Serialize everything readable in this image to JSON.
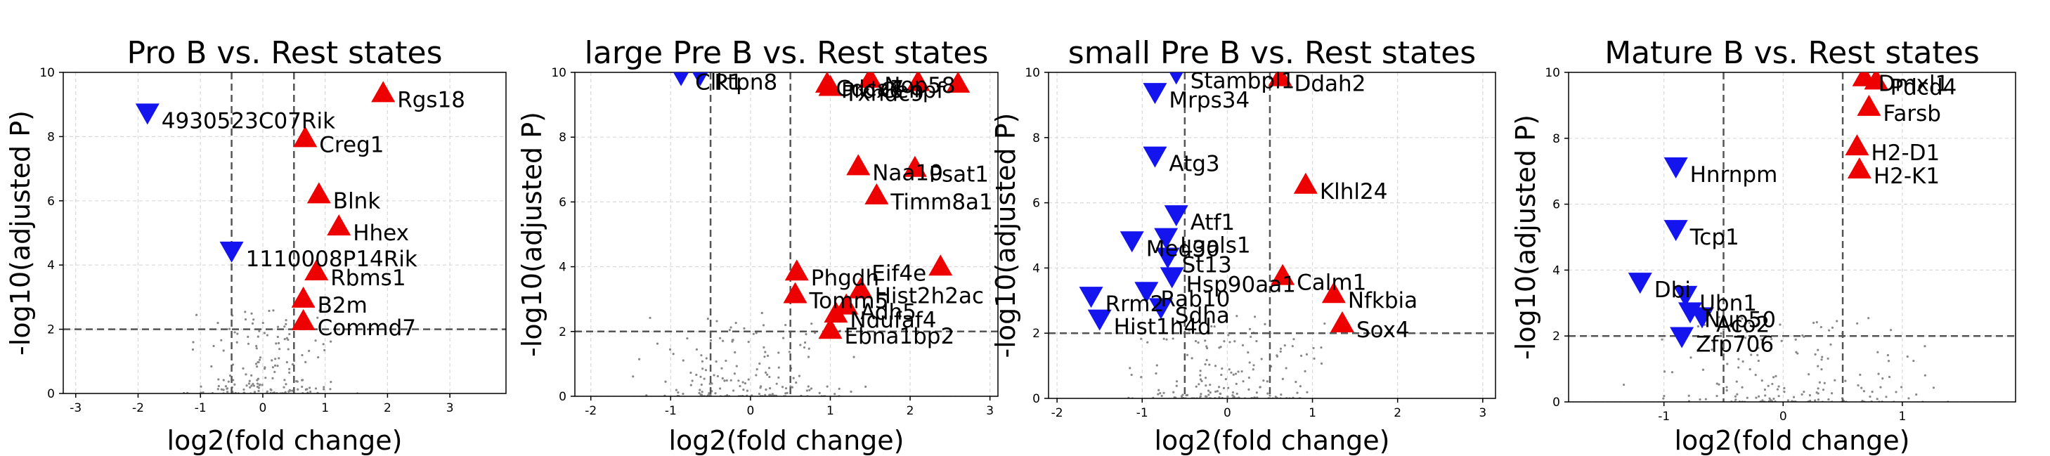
{
  "colors": {
    "up": "#ee0000",
    "down": "#1414ee",
    "background_points": "#888888",
    "threshold": "#555555",
    "grid": "#d9d9d9"
  },
  "chart_data": [
    {
      "type": "scatter",
      "title": "Pro B vs. Rest states",
      "xlabel": "log2(fold change)",
      "ylabel": "-log10(adjusted P)",
      "xlim": [
        -3.2,
        3.9
      ],
      "ylim": [
        0,
        10
      ],
      "xticks": [
        -3,
        -2,
        -1,
        0,
        1,
        2,
        3
      ],
      "yticks": [
        0,
        2,
        4,
        6,
        8,
        10
      ],
      "threshold_x": [
        -0.5,
        0.5
      ],
      "threshold_y": 2,
      "up": [
        {
          "label": "Rgs18",
          "x": 1.93,
          "y": 9.4
        },
        {
          "label": "Creg1",
          "x": 0.68,
          "y": 8.0
        },
        {
          "label": "Blnk",
          "x": 0.9,
          "y": 6.25
        },
        {
          "label": "Hhex",
          "x": 1.22,
          "y": 5.25
        },
        {
          "label": "Rbms1",
          "x": 0.86,
          "y": 3.85
        },
        {
          "label": "B2m",
          "x": 0.65,
          "y": 3.0
        },
        {
          "label": "Commd7",
          "x": 0.65,
          "y": 2.3
        }
      ],
      "down": [
        {
          "label": "4930523C07Rik",
          "x": -1.85,
          "y": 8.7
        },
        {
          "label": "1110008P14Rik",
          "x": -0.5,
          "y": 4.4
        }
      ]
    },
    {
      "type": "scatter",
      "title": "large Pre B vs. Rest states",
      "xlabel": "log2(fold change)",
      "ylabel": "-log10(adjusted P)",
      "xlim": [
        -2.2,
        3.1
      ],
      "ylim": [
        0,
        10
      ],
      "xticks": [
        -2,
        -1,
        0,
        1,
        2,
        3
      ],
      "yticks": [
        0,
        2,
        4,
        6,
        8,
        10
      ],
      "threshold_x": [
        -0.5,
        0.5
      ],
      "threshold_y": 2,
      "up": [
        {
          "label": "Prdx6",
          "x": 0.96,
          "y": 9.7
        },
        {
          "label": "Txndc9",
          "x": 1.0,
          "y": 9.6
        },
        {
          "label": "Nop58",
          "x": 1.5,
          "y": 9.85
        },
        {
          "label": "Cdca7",
          "x": 2.1,
          "y": 9.75
        },
        {
          "label": "Cenpf",
          "x": 2.6,
          "y": 9.7
        },
        {
          "label": "Naa10",
          "x": 1.35,
          "y": 7.15
        },
        {
          "label": "Psat1",
          "x": 2.06,
          "y": 7.1
        },
        {
          "label": "Timm8a1",
          "x": 1.58,
          "y": 6.25
        },
        {
          "label": "Phgdh",
          "x": 0.58,
          "y": 3.9
        },
        {
          "label": "Eif4e",
          "x": 2.38,
          "y": 4.05
        },
        {
          "label": "Hist2h2ac",
          "x": 1.38,
          "y": 3.35
        },
        {
          "label": "Tomm5",
          "x": 0.56,
          "y": 3.2
        },
        {
          "label": "Adh5",
          "x": 1.2,
          "y": 2.85
        },
        {
          "label": "Ndufaf4",
          "x": 1.07,
          "y": 2.6
        },
        {
          "label": "Ebna1bp2",
          "x": 1.0,
          "y": 2.1
        }
      ],
      "down": [
        {
          "label": "Clk1",
          "x": -0.87,
          "y": 9.9
        },
        {
          "label": "Ptpn8",
          "x": -0.63,
          "y": 9.9
        }
      ]
    },
    {
      "type": "scatter",
      "title": "small Pre B vs. Rest states",
      "xlabel": "log2(fold change)",
      "ylabel": "-log10(adjusted P)",
      "xlim": [
        -2.1,
        3.15
      ],
      "ylim": [
        0,
        10
      ],
      "xticks": [
        -2,
        -1,
        0,
        1,
        2,
        3
      ],
      "yticks": [
        0,
        2,
        4,
        6,
        8,
        10
      ],
      "threshold_x": [
        -0.5,
        0.5
      ],
      "threshold_y": 2,
      "up": [
        {
          "label": "Ddah2",
          "x": 0.62,
          "y": 9.9
        },
        {
          "label": "Klhl24",
          "x": 0.92,
          "y": 6.6
        },
        {
          "label": "Calm1",
          "x": 0.65,
          "y": 3.8
        },
        {
          "label": "Nfkbia",
          "x": 1.25,
          "y": 3.25
        },
        {
          "label": "Sox4",
          "x": 1.35,
          "y": 2.35
        }
      ],
      "down": [
        {
          "label": "Mrps34",
          "x": -0.85,
          "y": 9.35
        },
        {
          "label": "Stambpl1",
          "x": -0.6,
          "y": 9.95
        },
        {
          "label": "Atg3",
          "x": -0.85,
          "y": 7.4
        },
        {
          "label": "Atf1",
          "x": -0.6,
          "y": 5.6
        },
        {
          "label": "Lgals1",
          "x": -0.72,
          "y": 4.9
        },
        {
          "label": "St13",
          "x": -0.7,
          "y": 4.3
        },
        {
          "label": "Med30",
          "x": -1.12,
          "y": 4.8
        },
        {
          "label": "Hsp90aa1",
          "x": -0.65,
          "y": 3.7
        },
        {
          "label": "Rrm2",
          "x": -1.6,
          "y": 3.1
        },
        {
          "label": "Rab10",
          "x": -0.95,
          "y": 3.25
        },
        {
          "label": "Sdha",
          "x": -0.78,
          "y": 2.75
        },
        {
          "label": "Hist1h4d",
          "x": -1.5,
          "y": 2.4
        }
      ]
    },
    {
      "type": "scatter",
      "title": "Mature B vs. Rest states",
      "xlabel": "log2(fold change)",
      "ylabel": "-log10(adjusted P)",
      "xlim": [
        -1.8,
        1.95
      ],
      "ylim": [
        0,
        10
      ],
      "xticks": [
        -1,
        0,
        1
      ],
      "yticks": [
        0,
        2,
        4,
        6,
        8,
        10
      ],
      "threshold_x": [
        -0.5,
        0.5
      ],
      "threshold_y": 2,
      "up": [
        {
          "label": "Pdcd4",
          "x": 0.78,
          "y": 9.8
        },
        {
          "label": "Dmxl1",
          "x": 0.68,
          "y": 9.9
        },
        {
          "label": "Farsb",
          "x": 0.72,
          "y": 9.0
        },
        {
          "label": "H2-D1",
          "x": 0.62,
          "y": 7.8
        },
        {
          "label": "H2-K1",
          "x": 0.64,
          "y": 7.1
        }
      ],
      "down": [
        {
          "label": "Hnrnpm",
          "x": -0.9,
          "y": 7.1
        },
        {
          "label": "Tcp1",
          "x": -0.9,
          "y": 5.2
        },
        {
          "label": "Dbi",
          "x": -1.2,
          "y": 3.6
        },
        {
          "label": "Ubn1",
          "x": -0.82,
          "y": 3.2
        },
        {
          "label": "Nup50",
          "x": -0.78,
          "y": 2.7
        },
        {
          "label": "Aco2",
          "x": -0.68,
          "y": 2.55
        },
        {
          "label": "Zfp706",
          "x": -0.85,
          "y": 1.95
        }
      ]
    }
  ]
}
